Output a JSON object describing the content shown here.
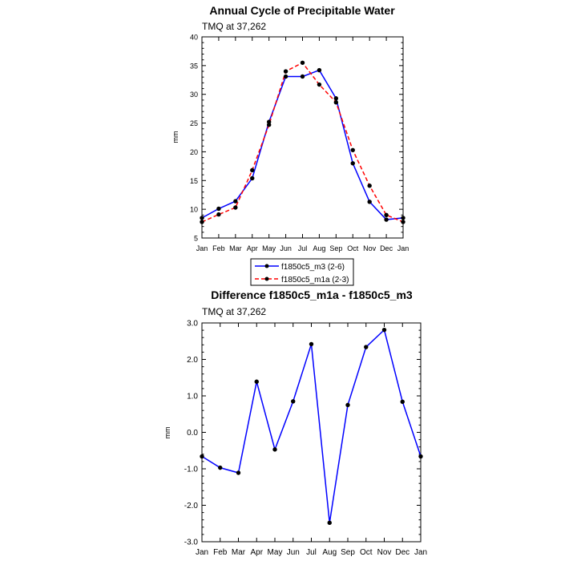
{
  "chart_data": [
    {
      "type": "line",
      "title": "Annual Cycle of Precipitable Water",
      "subtitle": "TMQ at 37,262",
      "xlabel": "",
      "ylabel": "mm",
      "categories": [
        "Jan",
        "Feb",
        "Mar",
        "Apr",
        "May",
        "Jun",
        "Jul",
        "Aug",
        "Sep",
        "Oct",
        "Nov",
        "Dec",
        "Jan"
      ],
      "y_ticks": [
        "5",
        "10",
        "15",
        "20",
        "25",
        "30",
        "35",
        "40"
      ],
      "ylim": [
        5,
        40
      ],
      "grid": false,
      "legend_position": "below",
      "series": [
        {
          "name": "f1850c5_m3 (2-6)",
          "color": "#0000ff",
          "dash": "solid",
          "values": [
            8.5,
            10.1,
            11.4,
            15.4,
            25.2,
            33.1,
            33.1,
            34.2,
            29.3,
            18.0,
            11.3,
            8.2,
            8.5
          ]
        },
        {
          "name": "f1850c5_m1a (2-3)",
          "color": "#ff0000",
          "dash": "dashed",
          "values": [
            7.8,
            9.1,
            10.3,
            16.8,
            24.7,
            34.0,
            35.5,
            31.7,
            28.6,
            20.3,
            14.1,
            9.0,
            7.8
          ]
        }
      ]
    },
    {
      "type": "line",
      "title": "Difference f1850c5_m1a - f1850c5_m3",
      "subtitle": "TMQ at 37,262",
      "xlabel": "",
      "ylabel": "mm",
      "categories": [
        "Jan",
        "Feb",
        "Mar",
        "Apr",
        "May",
        "Jun",
        "Jul",
        "Aug",
        "Sep",
        "Oct",
        "Nov",
        "Dec",
        "Jan"
      ],
      "y_ticks": [
        "-3.0",
        "-2.0",
        "-1.0",
        "0.0",
        "1.0",
        "2.0",
        "3.0"
      ],
      "ylim": [
        -3,
        3
      ],
      "grid": false,
      "series": [
        {
          "color": "#0000ff",
          "values": [
            -0.66,
            -0.97,
            -1.11,
            1.39,
            -0.47,
            0.85,
            2.42,
            -2.48,
            0.75,
            2.34,
            2.81,
            0.84,
            -0.66
          ]
        }
      ]
    }
  ]
}
